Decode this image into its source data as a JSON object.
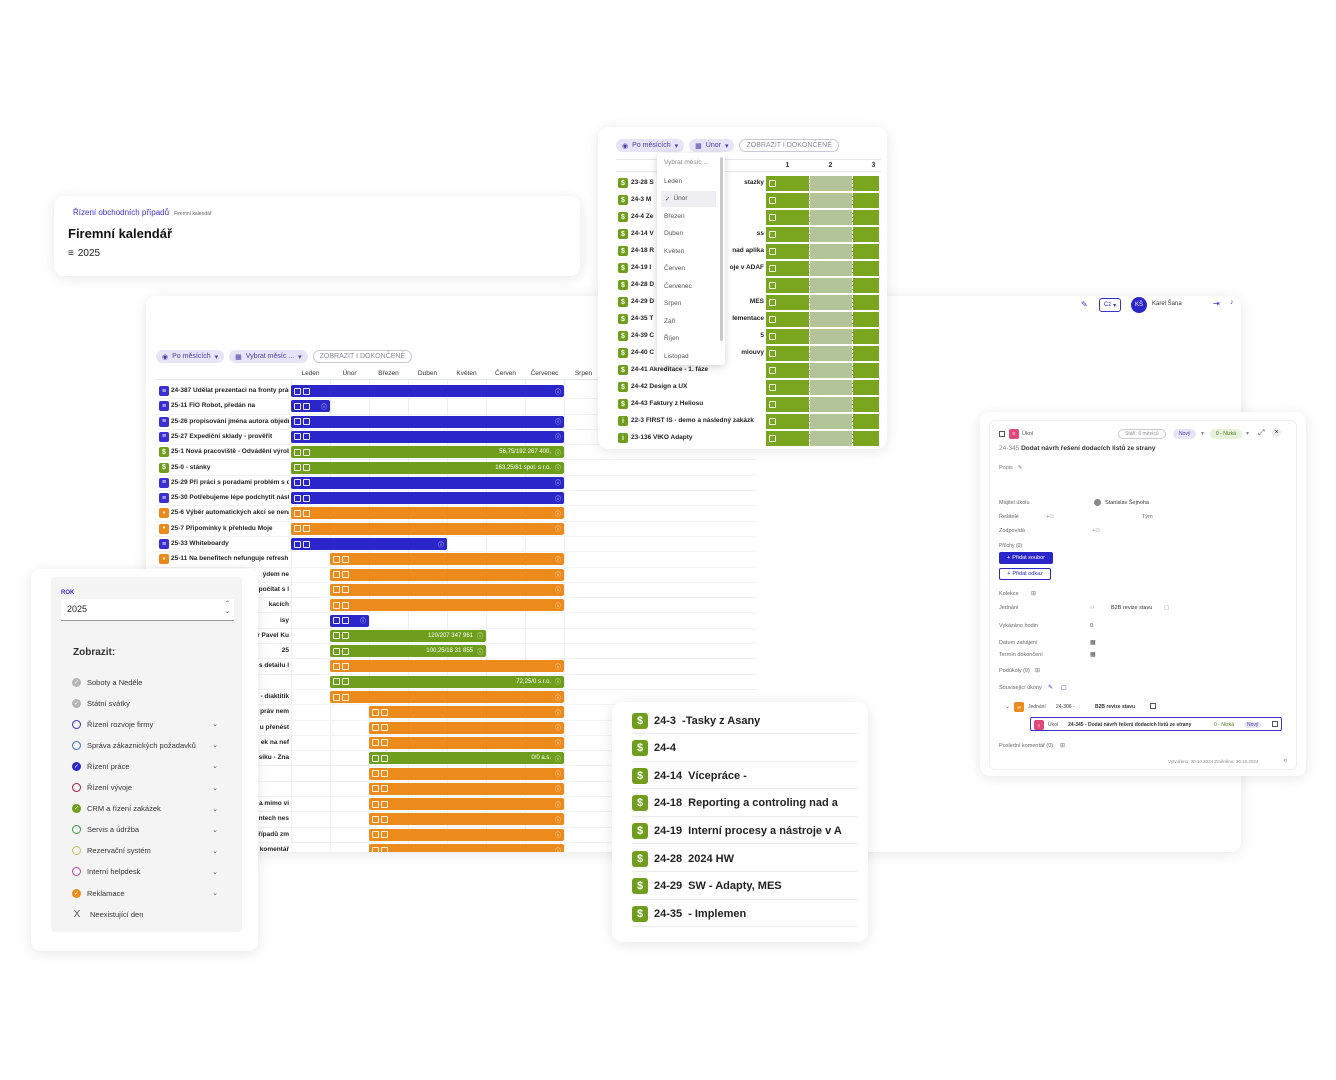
{
  "breadcrumb": {
    "parent": "Řízení obchodních případů",
    "current": "Firemní kalendář"
  },
  "page_title": "Firemní kalendář",
  "year_label": "2025",
  "main_toolbar": {
    "view_chip": "Po měsících",
    "month_chip": "Vybrat měsíc ...",
    "show_done_chip": "ZOBRAZIT I DOKONČENÉ"
  },
  "header_right": {
    "lang": "Cz",
    "user_initials": "KŠ",
    "user_name": "Karel Šana"
  },
  "months": [
    "Leden",
    "Únor",
    "Březen",
    "Duben",
    "Květen",
    "Červen",
    "Červenec",
    "Srpen"
  ],
  "main_rows": [
    {
      "label": "24-387 Udělat prezentaci na fronty prác",
      "type": "blue",
      "icon": "≡",
      "bar_text": ""
    },
    {
      "label": "25-11 FIO Robot, předán na",
      "type": "blue",
      "icon": "≡",
      "bar_text": ""
    },
    {
      "label": "25-26 propisování jména autora objedná",
      "type": "blue",
      "icon": "≡",
      "bar_text": ""
    },
    {
      "label": "25-27 Expediční sklady - prověřit",
      "type": "blue",
      "icon": "≡",
      "bar_text": ""
    },
    {
      "label": "25-1 Nová pracoviště - Odvádění výroby",
      "type": "green",
      "icon": "$",
      "bar_text": "56,75/192  267 400,"
    },
    {
      "label": "25-0 - stánky",
      "type": "green",
      "icon": "$",
      "bar_text": "163,25/81  spol. s r.o."
    },
    {
      "label": "25-29 Při práci s poradami problém s du",
      "type": "blue",
      "icon": "≡",
      "bar_text": ""
    },
    {
      "label": "25-30 Potřebujeme lépe podchytit nástu",
      "type": "blue",
      "icon": "≡",
      "bar_text": ""
    },
    {
      "label": "25-6 Výběr automatických akcí se nená",
      "type": "orange",
      "icon": "•",
      "bar_text": ""
    },
    {
      "label": "25-7 Připomínky k přehledu Moje",
      "type": "orange",
      "icon": "•",
      "bar_text": ""
    },
    {
      "label": "25-33 Whiteboardy",
      "type": "blue",
      "icon": "≡",
      "bar_text": ""
    },
    {
      "label": "25-11 Na benefitech nefunguje refresh",
      "type": "orange",
      "icon": "•",
      "bar_text": ""
    },
    {
      "label": "ýdem ne",
      "type": "orange",
      "icon": "",
      "bar_text": ""
    },
    {
      "label": "počítat s l",
      "type": "orange",
      "icon": "",
      "bar_text": ""
    },
    {
      "label": "kacích",
      "type": "orange",
      "icon": "",
      "bar_text": ""
    },
    {
      "label": "isy",
      "type": "blue",
      "icon": "",
      "bar_text": ""
    },
    {
      "label": "r Pavel Ku",
      "type": "green",
      "icon": "",
      "bar_text": "120/207  347 961"
    },
    {
      "label": "25",
      "type": "green",
      "icon": "",
      "bar_text": "100,25/18  31 855"
    },
    {
      "label": "s detailu l",
      "type": "orange",
      "icon": "",
      "bar_text": ""
    },
    {
      "label": "",
      "type": "green",
      "icon": "",
      "bar_text": "72,25/0  s.r.o."
    },
    {
      "label": "- diaktitik",
      "type": "orange",
      "icon": "",
      "bar_text": ""
    },
    {
      "label": "práv nem",
      "type": "orange",
      "icon": "",
      "bar_text": ""
    },
    {
      "label": "u přenést",
      "type": "orange",
      "icon": "",
      "bar_text": ""
    },
    {
      "label": "ek na nef",
      "type": "orange",
      "icon": "",
      "bar_text": ""
    },
    {
      "label": "síku - Zna",
      "type": "green",
      "icon": "",
      "bar_text": "0/0  a.s."
    },
    {
      "label": "",
      "type": "orange",
      "icon": "",
      "bar_text": ""
    },
    {
      "label": "",
      "type": "orange",
      "icon": "",
      "bar_text": ""
    },
    {
      "label": "a mimo vi",
      "type": "orange",
      "icon": "",
      "bar_text": ""
    },
    {
      "label": "ntech nes",
      "type": "orange",
      "icon": "",
      "bar_text": ""
    },
    {
      "label": "řípadů zm",
      "type": "orange",
      "icon": "",
      "bar_text": ""
    },
    {
      "label": "komentář",
      "type": "orange",
      "icon": "",
      "bar_text": ""
    }
  ],
  "month_popup": {
    "view_chip": "Po měsících",
    "month_chip": "Únor",
    "show_done_chip": "ZOBRAZIT I DOKONČENÉ",
    "day_headers": [
      "1",
      "2",
      "3"
    ],
    "dropdown_title": "Vybrat měsíc ...",
    "dropdown_items": [
      "Leden",
      "Únor",
      "Březen",
      "Duben",
      "Květen",
      "Červen",
      "Červenec",
      "Srpen",
      "Září",
      "Říjen",
      "Listopad"
    ],
    "rows": [
      {
        "label": "23-28 S",
        "tail": "stazky",
        "icon": "$",
        "type": "green"
      },
      {
        "label": "24-3 M",
        "tail": "",
        "icon": "$",
        "type": "green"
      },
      {
        "label": "24-4 Ze",
        "tail": "",
        "icon": "$",
        "type": "green"
      },
      {
        "label": "24-14 V",
        "tail": "ss",
        "icon": "$",
        "type": "green"
      },
      {
        "label": "24-18 R",
        "tail": "nad aplika",
        "icon": "$",
        "type": "green"
      },
      {
        "label": "24-19 I",
        "tail": "oje v ADAF",
        "icon": "$",
        "type": "green"
      },
      {
        "label": "24-28 D",
        "tail": "",
        "icon": "$",
        "type": "green"
      },
      {
        "label": "24-29 D",
        "tail": "MES",
        "icon": "$",
        "type": "green"
      },
      {
        "label": "24-35 T",
        "tail": "lementace",
        "icon": "$",
        "type": "green"
      },
      {
        "label": "24-39 C",
        "tail": "5",
        "icon": "$",
        "type": "green"
      },
      {
        "label": "24-40 C",
        "tail": "mlouvy",
        "icon": "$",
        "type": "green"
      },
      {
        "label": "24-41 Akreditace - 1. fáze",
        "tail": "",
        "icon": "$",
        "type": "green"
      },
      {
        "label": "24-42 Design a UX",
        "tail": "",
        "icon": "$",
        "type": "green"
      },
      {
        "label": "24-43 Faktury z Heliosu",
        "tail": "",
        "icon": "$",
        "type": "green"
      },
      {
        "label": "22-3 FIRST IS - demo a následný zakázk",
        "tail": "",
        "icon": "i",
        "type": "green"
      },
      {
        "label": "23-136 VIKO Adapty",
        "tail": "",
        "icon": "i",
        "type": "green"
      }
    ]
  },
  "filter_panel": {
    "rok_label": "ROK",
    "rok_value": "2025",
    "zobrazit_label": "Zobrazit:",
    "items": [
      {
        "label": "Soboty a Neděle",
        "style": "grey-filled",
        "color": "#b5b5b5",
        "chevron": false
      },
      {
        "label": "Státní svátky",
        "style": "grey-filled",
        "color": "#b5b5b5",
        "chevron": false
      },
      {
        "label": "Řízení rozvoje firmy",
        "style": "outline",
        "color": "#3b2fd1",
        "chevron": true
      },
      {
        "label": "Správa zákaznických požadavků",
        "style": "outline",
        "color": "#3b6fd1",
        "chevron": true
      },
      {
        "label": "Řízení práce",
        "style": "filled",
        "color": "#2b26c9",
        "chevron": true
      },
      {
        "label": "Řízení vývoje",
        "style": "outline",
        "color": "#b0174a",
        "chevron": true
      },
      {
        "label": "CRM a řízení zakázek",
        "style": "filled",
        "color": "#6e9e1c",
        "chevron": true
      },
      {
        "label": "Servis a údržba",
        "style": "outline",
        "color": "#3a9e3a",
        "chevron": true
      },
      {
        "label": "Rezervační systém",
        "style": "outline",
        "color": "#c9c25a",
        "chevron": true
      },
      {
        "label": "Interní helpdesk",
        "style": "outline",
        "color": "#c43fb1",
        "chevron": true
      },
      {
        "label": "Reklamace",
        "style": "filled",
        "color": "#ec8a1c",
        "chevron": true
      },
      {
        "label": "Neexistující den",
        "style": "x",
        "color": "#555555",
        "chevron": false
      }
    ]
  },
  "list_popup": {
    "rows": [
      {
        "code": "24-3",
        "name": "-Tasky z Asany"
      },
      {
        "code": "24-4",
        "name": ""
      },
      {
        "code": "24-14",
        "name": "Vícepráce -"
      },
      {
        "code": "24-18",
        "name": "Reporting a controling nad a"
      },
      {
        "code": "24-19",
        "name": "Interní procesy a nástroje v A"
      },
      {
        "code": "24-28",
        "name": "2024 HW"
      },
      {
        "code": "24-29",
        "name": "SW - Adapty, MES"
      },
      {
        "code": "24-35",
        "name": "- Implemen"
      }
    ]
  },
  "task_detail": {
    "type_label": "Úkol",
    "status_chip": "Stáří: 6 měsíců",
    "state_chip": "Nový",
    "priority_chip": "0 - Nízká",
    "code": "24-345",
    "title": "Dodat návrh řešení dodacích listů ze strany",
    "popis_label": "Popis",
    "owner_label": "Majitel úkolu",
    "owner_value": "Stanislav Šejnoha",
    "resitele_label": "Řešitelé",
    "tym_label": "Tým",
    "zodpovida_label": "Zodpovídá",
    "prilohy_label": "Přílohy (0)",
    "add_file_btn": "Přidat soubor",
    "add_link_btn": "Přidat odkaz",
    "kolekce_label": "Kolekce",
    "jednani_label": "Jednání",
    "jednani_value": "B2B revize stavu",
    "hodiny_label": "Vykázáno hodin",
    "hodiny_value": "0",
    "zahajeni_label": "Datum zahájení",
    "dokonceni_label": "Termín dokončení",
    "podukoly_label": "Podúkoly (0)",
    "souvisejici_label": "Související úkony",
    "tree_type": "Jednání",
    "tree_code": "24-306 -",
    "tree_name": "B2B revize stavu",
    "sub_type": "Úkol",
    "sub_text": "24-345 - Dodat návrh řešení dodacích listů ze strany",
    "sub_priority": "0 - Nízká",
    "sub_state": "Nový",
    "posledni_label": "Poslední komentář (0)",
    "footer": "Vytvořeno: 30.10.2024  Změněno: 30.10.2024"
  }
}
